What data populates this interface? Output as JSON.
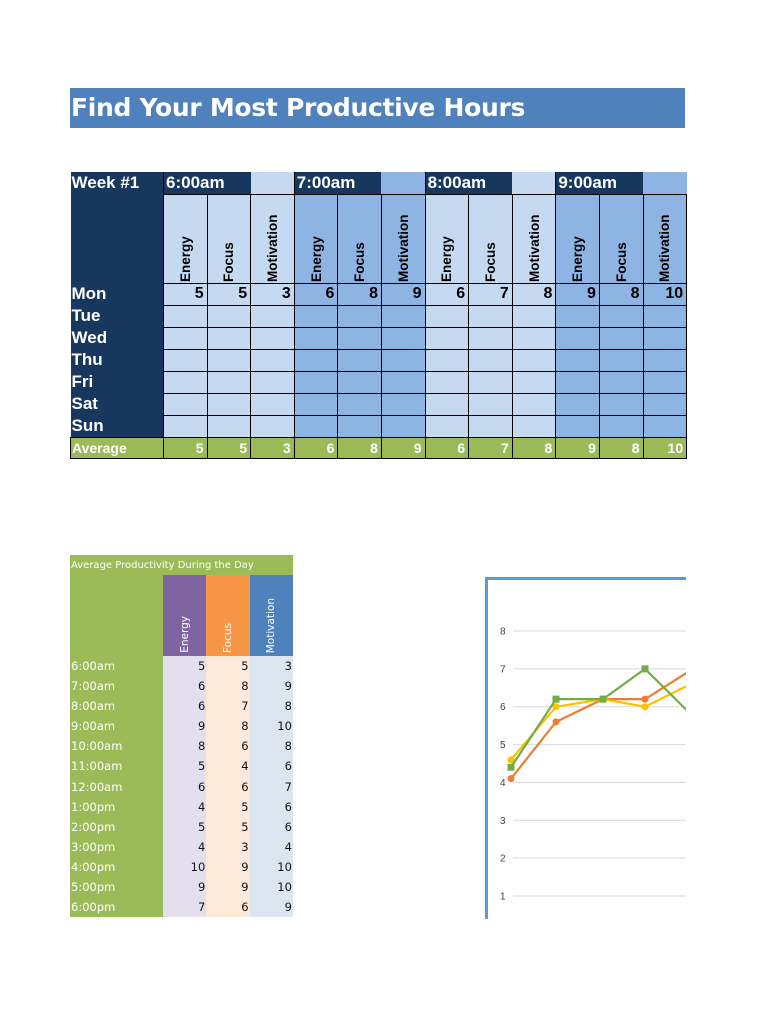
{
  "title": "Find Your Most Productive Hours",
  "week_table": {
    "week_label": "Week #1",
    "time_slots": [
      "6:00am",
      "7:00am",
      "8:00am",
      "9:00am"
    ],
    "metrics": [
      "Energy",
      "Focus",
      "Motivation"
    ],
    "days": [
      "Mon",
      "Tue",
      "Wed",
      "Thu",
      "Fri",
      "Sat",
      "Sun"
    ],
    "values": {
      "Mon": [
        "5",
        "5",
        "3",
        "6",
        "8",
        "9",
        "6",
        "7",
        "8",
        "9",
        "8",
        "10"
      ],
      "Tue": [
        "",
        "",
        "",
        "",
        "",
        "",
        "",
        "",
        "",
        "",
        "",
        ""
      ],
      "Wed": [
        "",
        "",
        "",
        "",
        "",
        "",
        "",
        "",
        "",
        "",
        "",
        ""
      ],
      "Thu": [
        "",
        "",
        "",
        "",
        "",
        "",
        "",
        "",
        "",
        "",
        "",
        ""
      ],
      "Fri": [
        "",
        "",
        "",
        "",
        "",
        "",
        "",
        "",
        "",
        "",
        "",
        ""
      ],
      "Sat": [
        "",
        "",
        "",
        "",
        "",
        "",
        "",
        "",
        "",
        "",
        "",
        ""
      ],
      "Sun": [
        "",
        "",
        "",
        "",
        "",
        "",
        "",
        "",
        "",
        "",
        "",
        ""
      ]
    },
    "average_label": "Average",
    "averages": [
      "5",
      "5",
      "3",
      "6",
      "8",
      "9",
      "6",
      "7",
      "8",
      "9",
      "8",
      "10"
    ]
  },
  "daily_table": {
    "title": "Average Productivity During the Day",
    "headers": [
      "Energy",
      "Focus",
      "Motivation"
    ],
    "header_colors": [
      "#8064a2",
      "#f79646",
      "#4f81bd"
    ],
    "rows": [
      {
        "time": "6:00am",
        "energy": "5",
        "focus": "5",
        "motivation": "3"
      },
      {
        "time": "7:00am",
        "energy": "6",
        "focus": "8",
        "motivation": "9"
      },
      {
        "time": "8:00am",
        "energy": "6",
        "focus": "7",
        "motivation": "8"
      },
      {
        "time": "9:00am",
        "energy": "9",
        "focus": "8",
        "motivation": "10"
      },
      {
        "time": "10:00am",
        "energy": "8",
        "focus": "6",
        "motivation": "8"
      },
      {
        "time": "11:00am",
        "energy": "5",
        "focus": "4",
        "motivation": "6"
      },
      {
        "time": "12:00am",
        "energy": "6",
        "focus": "6",
        "motivation": "7"
      },
      {
        "time": "1:00pm",
        "energy": "4",
        "focus": "5",
        "motivation": "6"
      },
      {
        "time": "2:00pm",
        "energy": "5",
        "focus": "5",
        "motivation": "6"
      },
      {
        "time": "3:00pm",
        "energy": "4",
        "focus": "3",
        "motivation": "4"
      },
      {
        "time": "4:00pm",
        "energy": "10",
        "focus": "9",
        "motivation": "10"
      },
      {
        "time": "5:00pm",
        "energy": "9",
        "focus": "9",
        "motivation": "10"
      },
      {
        "time": "6:00pm",
        "energy": "7",
        "focus": "6",
        "motivation": "9"
      }
    ]
  },
  "chart_data": {
    "type": "line",
    "title": "",
    "xlabel": "",
    "ylabel": "",
    "y_ticks": [
      "1",
      "2",
      "3",
      "4",
      "5",
      "6",
      "7",
      "8"
    ],
    "ylim": [
      0.7,
      8.4
    ],
    "grid": true,
    "series": [
      {
        "name": "orange",
        "color": "#ed7d31",
        "values": [
          4.1,
          5.6,
          6.2,
          6.2,
          6.9
        ]
      },
      {
        "name": "yellow",
        "color": "#ffc000",
        "values": [
          4.6,
          6.0,
          6.2,
          6.0,
          6.55
        ]
      },
      {
        "name": "green",
        "color": "#70ad47",
        "values": [
          4.4,
          6.2,
          6.2,
          7.0,
          5.9
        ]
      }
    ],
    "note": "Chart is cropped on the right edge; only the first points are visible."
  }
}
